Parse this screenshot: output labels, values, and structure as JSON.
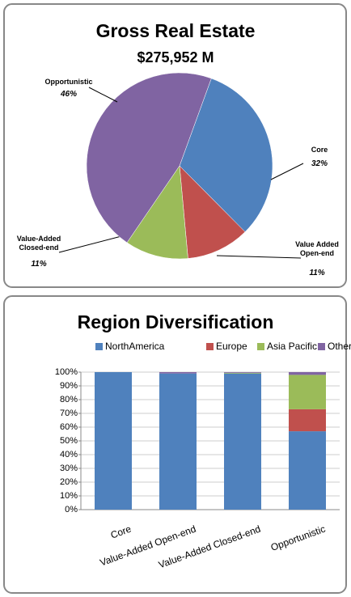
{
  "chart_data": [
    {
      "type": "pie",
      "title": "Gross Real Estate",
      "subtitle": "$275,952 M",
      "categories": [
        "Core",
        "Value Added Open-end",
        "Value-Added Closed-end",
        "Opportunistic"
      ],
      "values": [
        32,
        11,
        11,
        46
      ],
      "value_labels": [
        "32%",
        "11%",
        "11%",
        "46%"
      ],
      "colors": [
        "#4f81bd",
        "#c0504d",
        "#9bbb59",
        "#8064a2"
      ]
    },
    {
      "type": "stacked_bar",
      "title": "Region Diversification",
      "categories": [
        "Core",
        "Value-Added Open-end",
        "Value-Added Closed-end",
        "Opportunistic"
      ],
      "series": [
        {
          "name": "NorthAmerica",
          "color": "#4f81bd",
          "values": [
            100,
            99,
            99,
            57
          ]
        },
        {
          "name": "Europe",
          "color": "#c0504d",
          "values": [
            0,
            0,
            0,
            16
          ]
        },
        {
          "name": "Asia Pacific",
          "color": "#9bbb59",
          "values": [
            0,
            0,
            0.5,
            25
          ]
        },
        {
          "name": "Other",
          "color": "#8064a2",
          "values": [
            0,
            1,
            0.5,
            2
          ]
        }
      ],
      "ylim": [
        0,
        100
      ],
      "yticks": [
        {
          "value": 0,
          "label": "0%"
        },
        {
          "value": 10,
          "label": "10%"
        },
        {
          "value": 20,
          "label": "20%"
        },
        {
          "value": 30,
          "label": "30%"
        },
        {
          "value": 40,
          "label": "40%"
        },
        {
          "value": 50,
          "label": "50%"
        },
        {
          "value": 60,
          "label": "60%"
        },
        {
          "value": 70,
          "label": "70%"
        },
        {
          "value": 80,
          "label": "80%"
        },
        {
          "value": 90,
          "label": "90%"
        },
        {
          "value": 100,
          "label": "100%"
        }
      ],
      "grid": true,
      "legend": "top"
    }
  ]
}
